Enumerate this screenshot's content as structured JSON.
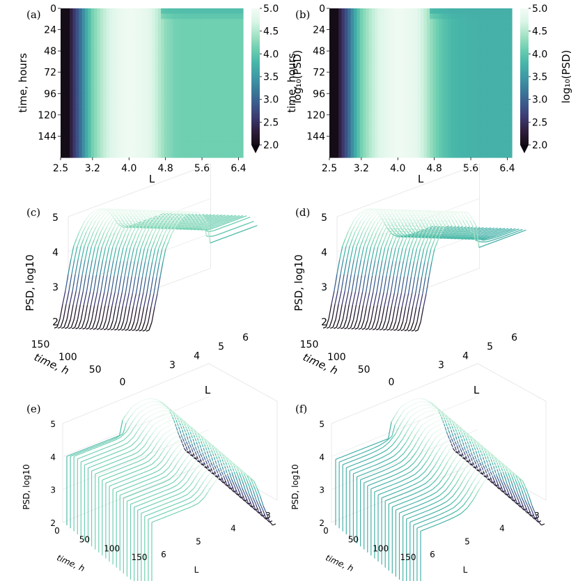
{
  "colormap": [
    "#140c16",
    "#2e1e3c",
    "#3c3970",
    "#3b5a8c",
    "#3b7a99",
    "#3e9aa6",
    "#47b6a8",
    "#6bceb0",
    "#a3e2c4",
    "#d9f5e6",
    "#f3fbf5"
  ],
  "chart_data": [
    {
      "panel": "(a)",
      "type": "heatmap",
      "xlabel": "L",
      "ylabel": "time, hours",
      "x_ticks": [
        "2.5",
        "3.2",
        "4.0",
        "4.8",
        "5.6",
        "6.4"
      ],
      "y_ticks": [
        "0",
        "24",
        "48",
        "72",
        "96",
        "120",
        "144"
      ],
      "x_range": [
        2.5,
        6.5
      ],
      "y_range": [
        0,
        168
      ],
      "colorbar": {
        "label": "log₁₀(PSD)",
        "ticks": [
          "5.0",
          "4.5",
          "4.0",
          "3.5",
          "3.0",
          "2.5",
          "2.0"
        ],
        "range": [
          2.0,
          5.0
        ],
        "extend": "min"
      },
      "L_profile": {
        "L": [
          2.5,
          2.6,
          2.7,
          2.8,
          2.9,
          3.0,
          3.1,
          3.2,
          3.4,
          3.6,
          3.8,
          4.0,
          4.2,
          4.4,
          4.6,
          4.8,
          5.0,
          5.2,
          5.4,
          5.6,
          5.8,
          6.0,
          6.2,
          6.5
        ],
        "log10_psd": [
          1.4,
          1.6,
          2.2,
          2.6,
          2.95,
          3.4,
          3.8,
          4.15,
          4.5,
          4.75,
          4.9,
          4.95,
          4.92,
          4.85,
          4.6,
          4.3,
          4.15,
          4.12,
          4.12,
          4.12,
          4.12,
          4.12,
          4.12,
          4.12
        ]
      },
      "late_L_gt_4_7_log10_psd": 3.85,
      "transition_hours": 15
    },
    {
      "panel": "(b)",
      "type": "heatmap",
      "xlabel": "L",
      "ylabel": "time, hours",
      "x_ticks": [
        "2.5",
        "3.2",
        "4.0",
        "4.8",
        "5.6",
        "6.4"
      ],
      "y_ticks": [
        "0",
        "24",
        "48",
        "72",
        "96",
        "120",
        "144"
      ],
      "x_range": [
        2.5,
        6.5
      ],
      "y_range": [
        0,
        168
      ],
      "colorbar": {
        "label": "log₁₀(PSD)",
        "ticks": [
          "5.0",
          "4.5",
          "4.0",
          "3.5",
          "3.0",
          "2.5",
          "2.0"
        ],
        "range": [
          2.0,
          5.0
        ],
        "extend": "min"
      },
      "L_profile": {
        "L": [
          2.5,
          2.6,
          2.7,
          2.8,
          2.9,
          3.0,
          3.1,
          3.2,
          3.4,
          3.6,
          3.8,
          4.0,
          4.2,
          4.4,
          4.6,
          4.8,
          5.0,
          5.2,
          5.4,
          5.6,
          5.8,
          6.0,
          6.2,
          6.5
        ],
        "log10_psd": [
          1.4,
          1.6,
          2.2,
          2.6,
          2.95,
          3.4,
          3.8,
          4.15,
          4.5,
          4.75,
          4.9,
          4.95,
          4.92,
          4.85,
          4.55,
          4.2,
          3.95,
          3.82,
          3.78,
          3.76,
          3.75,
          3.75,
          3.75,
          3.75
        ]
      },
      "late_L_gt_4_7_log10_psd": 3.72,
      "transition_hours": 15
    },
    {
      "panel": "(c)",
      "type": "line3d",
      "view": "front",
      "zlabel": "PSD, log10",
      "time_label": "time, h",
      "L_label": "L",
      "z_ticks": [
        "2",
        "3",
        "4",
        "5"
      ],
      "time_ticks": [
        "150",
        "100",
        "50",
        "0"
      ],
      "L_ticks": [
        "3",
        "4",
        "5",
        "6"
      ],
      "n_curves": 27,
      "z_range": [
        2,
        5
      ],
      "time_range": [
        0,
        168
      ],
      "L_range": [
        2.5,
        6.5
      ]
    },
    {
      "panel": "(d)",
      "type": "line3d",
      "view": "front",
      "zlabel": "PSD, log10",
      "time_label": "time, h",
      "L_label": "L",
      "z_ticks": [
        "2",
        "3",
        "4",
        "5"
      ],
      "time_ticks": [
        "150",
        "100",
        "50",
        "0"
      ],
      "L_ticks": [
        "3",
        "4",
        "5",
        "6"
      ],
      "n_curves": 27,
      "z_range": [
        2,
        5
      ],
      "time_range": [
        0,
        168
      ],
      "L_range": [
        2.5,
        6.5
      ]
    },
    {
      "panel": "(e)",
      "type": "line3d",
      "view": "back",
      "zlabel": "PSD, log10",
      "time_label": "time, h",
      "L_label": "L",
      "z_ticks": [
        "2",
        "3",
        "4",
        "5"
      ],
      "time_ticks": [
        "0",
        "50",
        "100",
        "150"
      ],
      "L_ticks": [
        "6",
        "5",
        "4",
        "3"
      ],
      "n_curves": 25,
      "z_range": [
        2,
        5
      ],
      "time_range": [
        0,
        168
      ],
      "L_range": [
        2.5,
        6.5
      ]
    },
    {
      "panel": "(f)",
      "type": "line3d",
      "view": "back",
      "zlabel": "PSD, log10",
      "time_label": "time, h",
      "L_label": "L",
      "z_ticks": [
        "2",
        "3",
        "4",
        "5"
      ],
      "time_ticks": [
        "0",
        "50",
        "100",
        "150"
      ],
      "L_ticks": [
        "6",
        "5",
        "4",
        "3"
      ],
      "n_curves": 25,
      "z_range": [
        2,
        5
      ],
      "time_range": [
        0,
        168
      ],
      "L_range": [
        2.5,
        6.5
      ]
    }
  ]
}
